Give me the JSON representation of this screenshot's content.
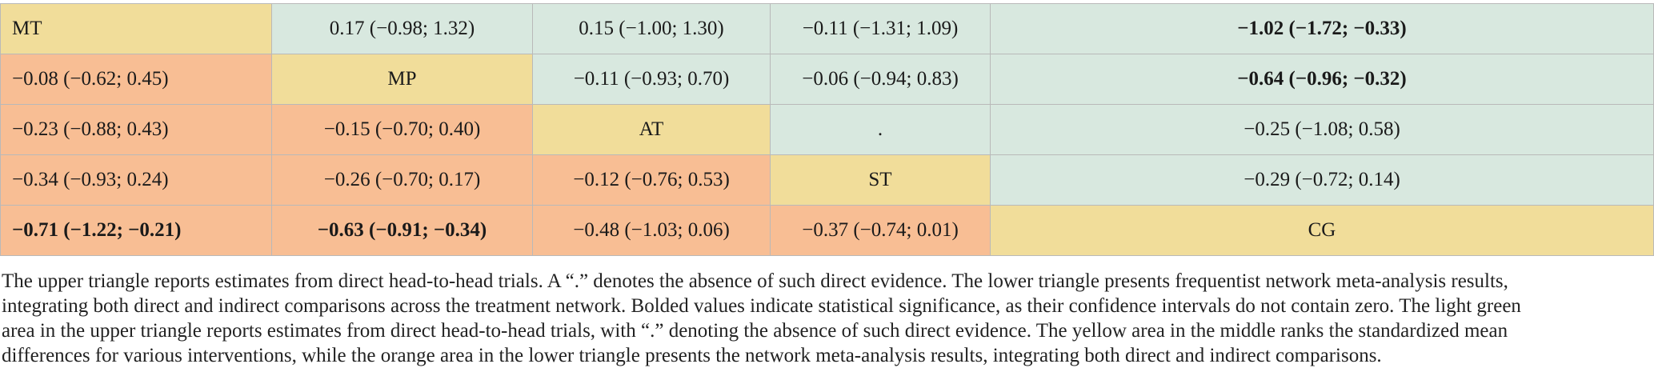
{
  "table": {
    "rows": [
      [
        {
          "text": "MT",
          "kind": "diag",
          "bold": false
        },
        {
          "text": "0.17 (−0.98; 1.32)",
          "kind": "upper",
          "bold": false
        },
        {
          "text": "0.15 (−1.00; 1.30)",
          "kind": "upper",
          "bold": false
        },
        {
          "text": "−0.11 (−1.31; 1.09)",
          "kind": "upper",
          "bold": false
        },
        {
          "text": "−1.02 (−1.72; −0.33)",
          "kind": "upper",
          "bold": true
        }
      ],
      [
        {
          "text": "−0.08 (−0.62; 0.45)",
          "kind": "lower",
          "bold": false
        },
        {
          "text": "MP",
          "kind": "diag",
          "bold": false
        },
        {
          "text": "−0.11 (−0.93; 0.70)",
          "kind": "upper",
          "bold": false
        },
        {
          "text": "−0.06 (−0.94; 0.83)",
          "kind": "upper",
          "bold": false
        },
        {
          "text": "−0.64 (−0.96; −0.32)",
          "kind": "upper",
          "bold": true
        }
      ],
      [
        {
          "text": "−0.23 (−0.88; 0.43)",
          "kind": "lower",
          "bold": false
        },
        {
          "text": "−0.15 (−0.70; 0.40)",
          "kind": "lower",
          "bold": false
        },
        {
          "text": "AT",
          "kind": "diag",
          "bold": false
        },
        {
          "text": ".",
          "kind": "upper",
          "bold": false
        },
        {
          "text": "−0.25 (−1.08; 0.58)",
          "kind": "upper",
          "bold": false
        }
      ],
      [
        {
          "text": "−0.34 (−0.93; 0.24)",
          "kind": "lower",
          "bold": false
        },
        {
          "text": "−0.26 (−0.70; 0.17)",
          "kind": "lower",
          "bold": false
        },
        {
          "text": "−0.12 (−0.76; 0.53)",
          "kind": "lower",
          "bold": false
        },
        {
          "text": "ST",
          "kind": "diag",
          "bold": false
        },
        {
          "text": "−0.29 (−0.72; 0.14)",
          "kind": "upper",
          "bold": false
        }
      ],
      [
        {
          "text": "−0.71 (−1.22; −0.21)",
          "kind": "lower",
          "bold": true
        },
        {
          "text": "−0.63 (−0.91; −0.34)",
          "kind": "lower",
          "bold": true
        },
        {
          "text": "−0.48 (−1.03; 0.06)",
          "kind": "lower",
          "bold": false
        },
        {
          "text": "−0.37 (−0.74; 0.01)",
          "kind": "lower",
          "bold": false
        },
        {
          "text": "CG",
          "kind": "diag",
          "bold": false
        }
      ]
    ]
  },
  "caption": {
    "lines": [
      "The upper triangle reports estimates from direct head-to-head trials. A “.” denotes the absence of such direct evidence. The lower triangle presents frequentist network meta-analysis results,",
      "integrating both direct and indirect comparisons across the treatment network. Bolded values indicate statistical significance, as their confidence intervals do not contain zero. The light green",
      "area in the upper triangle reports estimates from direct head-to-head trials, with “.” denoting the absence of such direct evidence. The yellow area in the middle ranks the standardized mean",
      "differences for various interventions, while the orange area in the lower triangle presents the network meta-analysis results, integrating both direct and indirect comparisons."
    ]
  },
  "colors": {
    "diagonal": "#f1dd9a",
    "upper_triangle": "#d8e8df",
    "lower_triangle": "#f8be94",
    "border": "#b9b9b9"
  }
}
